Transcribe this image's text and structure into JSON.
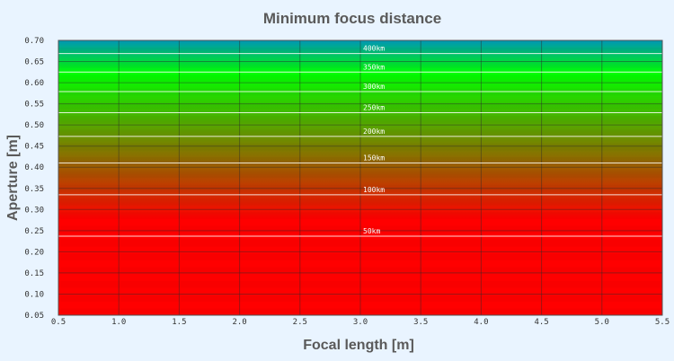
{
  "chart_data": {
    "type": "heatmap",
    "title": "Minimum focus distance",
    "xlabel": "Focal length [m]",
    "ylabel": "Aperture [m]",
    "xlim": [
      0.5,
      5.5
    ],
    "ylim": [
      0.05,
      0.7
    ],
    "x_ticks": [
      "0.5",
      "1.0",
      "1.5",
      "2.0",
      "2.5",
      "3.0",
      "3.5",
      "4.0",
      "4.5",
      "5.0",
      "5.5"
    ],
    "y_ticks": [
      "0.05",
      "0.10",
      "0.15",
      "0.20",
      "0.25",
      "0.30",
      "0.35",
      "0.40",
      "0.45",
      "0.50",
      "0.55",
      "0.60",
      "0.65",
      "0.70"
    ],
    "grid": true,
    "color_scale": {
      "low_color": "#ff0000",
      "mid_color": "#8a7000",
      "high_color": "#00ff00",
      "top_color": "#0096b4"
    },
    "contours": [
      {
        "label": "50km",
        "aperture": 0.237
      },
      {
        "label": "100km",
        "aperture": 0.335
      },
      {
        "label": "150km",
        "aperture": 0.41
      },
      {
        "label": "200km",
        "aperture": 0.473
      },
      {
        "label": "250km",
        "aperture": 0.529
      },
      {
        "label": "300km",
        "aperture": 0.579
      },
      {
        "label": "350km",
        "aperture": 0.625
      },
      {
        "label": "400km",
        "aperture": 0.669
      }
    ]
  }
}
